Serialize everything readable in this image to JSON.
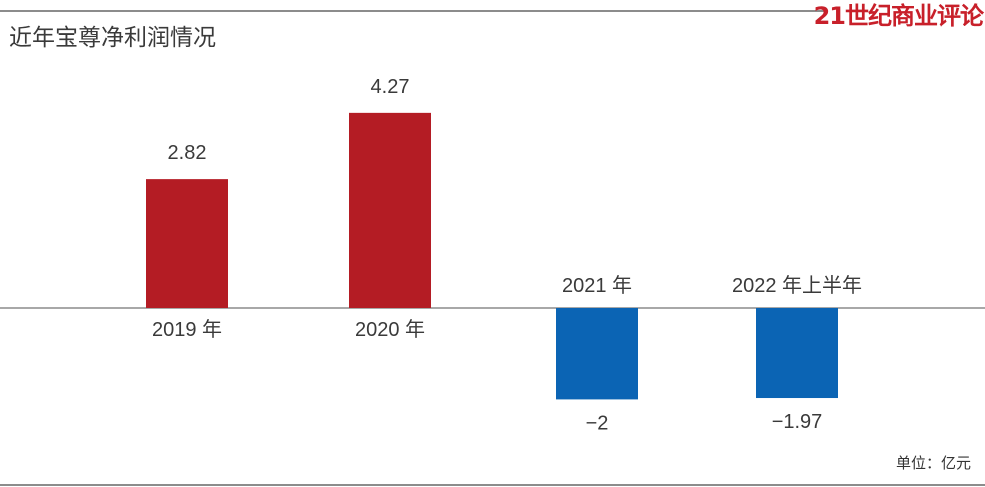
{
  "header": {
    "title": "近年宝尊净利润情况",
    "brand": "21世纪商业评论",
    "unit_note": "单位：亿元"
  },
  "colors": {
    "positive": "#b41c24",
    "negative": "#0b64b4",
    "text": "#3a3a3a",
    "brand": "#c8202a",
    "rule": "#8c8c8c"
  },
  "chart_data": {
    "type": "bar",
    "title": "近年宝尊净利润情况",
    "unit": "单位：亿元",
    "categories": [
      "2019 年",
      "2020 年",
      "2021 年",
      "2022 年上半年"
    ],
    "values": [
      2.82,
      4.27,
      -2,
      -1.97
    ],
    "value_labels": [
      "2.82",
      "4.27",
      "−2",
      "−1.97"
    ],
    "xlabel": "",
    "ylabel": "",
    "ylim": [
      -2.2,
      5.0
    ],
    "grid": false,
    "legend": "none"
  }
}
